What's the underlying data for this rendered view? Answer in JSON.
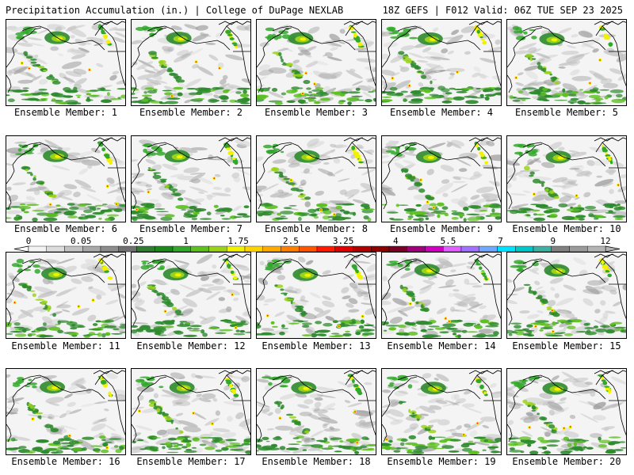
{
  "header": {
    "left_title": "Precipitation Accumulation (in.) | College of DuPage NEXLAB",
    "right_title": "18Z GEFS | F012 Valid: 06Z TUE SEP 23 2025"
  },
  "panels": [
    {
      "member": 1,
      "caption": "Ensemble Member: 1"
    },
    {
      "member": 2,
      "caption": "Ensemble Member: 2"
    },
    {
      "member": 3,
      "caption": "Ensemble Member: 3"
    },
    {
      "member": 4,
      "caption": "Ensemble Member: 4"
    },
    {
      "member": 5,
      "caption": "Ensemble Member: 5"
    },
    {
      "member": 6,
      "caption": "Ensemble Member: 6"
    },
    {
      "member": 7,
      "caption": "Ensemble Member: 7"
    },
    {
      "member": 8,
      "caption": "Ensemble Member: 8"
    },
    {
      "member": 9,
      "caption": "Ensemble Member: 9"
    },
    {
      "member": 10,
      "caption": "Ensemble Member: 10"
    },
    {
      "member": 11,
      "caption": "Ensemble Member: 11"
    },
    {
      "member": 12,
      "caption": "Ensemble Member: 12"
    },
    {
      "member": 13,
      "caption": "Ensemble Member: 13"
    },
    {
      "member": 14,
      "caption": "Ensemble Member: 14"
    },
    {
      "member": 15,
      "caption": "Ensemble Member: 15"
    },
    {
      "member": 16,
      "caption": "Ensemble Member: 16"
    },
    {
      "member": 17,
      "caption": "Ensemble Member: 17"
    },
    {
      "member": 18,
      "caption": "Ensemble Member: 18"
    },
    {
      "member": 19,
      "caption": "Ensemble Member: 19"
    },
    {
      "member": 20,
      "caption": "Ensemble Member: 20"
    }
  ],
  "colorbar": {
    "labels": [
      "0",
      "0.05",
      "0.25",
      "1",
      "1.75",
      "2.5",
      "3.25",
      "4",
      "5.5",
      "7",
      "9",
      "12"
    ],
    "colors": [
      "#f2f2f2",
      "#dcdcdc",
      "#c2c2c2",
      "#a8a8a8",
      "#8c8c8c",
      "#707070",
      "#2e7d32",
      "#1b8a1b",
      "#31a82a",
      "#5cc01f",
      "#9ad21a",
      "#f2f200",
      "#ffd200",
      "#ffaa00",
      "#ff8000",
      "#ff5500",
      "#ff1a00",
      "#e00000",
      "#b00000",
      "#8b0000",
      "#7a0026",
      "#a0007a",
      "#d000c0",
      "#e060ff",
      "#a070ff",
      "#6fa8ff",
      "#00e0ff",
      "#00c8c8",
      "#40b0a0",
      "#808080",
      "#9a9a9a",
      "#b4b4b4"
    ]
  },
  "legend_colors": {
    "land_outline": "#000000",
    "light_precip": "#a9a9a9",
    "moderate_precip": "#31a82a",
    "heavy_precip": "#f2f200"
  }
}
